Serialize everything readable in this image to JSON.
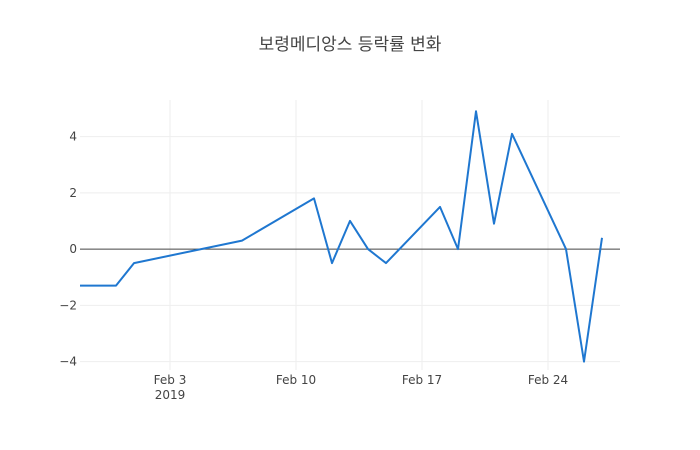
{
  "chart_data": {
    "type": "line",
    "title": "보령메디앙스 등락률 변화",
    "xlabel": "",
    "ylabel": "",
    "x_axis": {
      "type": "date",
      "range": [
        "2019-01-29",
        "2019-02-28"
      ],
      "ticks": [
        {
          "date": "2019-02-03",
          "label": "Feb 3",
          "sublabel": "2019"
        },
        {
          "date": "2019-02-10",
          "label": "Feb 10",
          "sublabel": ""
        },
        {
          "date": "2019-02-17",
          "label": "Feb 17",
          "sublabel": ""
        },
        {
          "date": "2019-02-24",
          "label": "Feb 24",
          "sublabel": ""
        }
      ]
    },
    "y_axis": {
      "range": [
        -4.3,
        5.3
      ],
      "ticks": [
        {
          "value": 4,
          "label": "4"
        },
        {
          "value": 2,
          "label": "2"
        },
        {
          "value": 0,
          "label": "0"
        },
        {
          "value": -2,
          "label": "−2"
        },
        {
          "value": -4,
          "label": "−4"
        }
      ],
      "zeroline": true
    },
    "grid": true,
    "color": "#1f77d0",
    "series": [
      {
        "name": "",
        "points": [
          {
            "x": "2019-01-29",
            "y": -1.3
          },
          {
            "x": "2019-01-31",
            "y": -1.3
          },
          {
            "x": "2019-02-01",
            "y": -0.5
          },
          {
            "x": "2019-02-07",
            "y": 0.3
          },
          {
            "x": "2019-02-11",
            "y": 1.8
          },
          {
            "x": "2019-02-12",
            "y": -0.5
          },
          {
            "x": "2019-02-13",
            "y": 1.0
          },
          {
            "x": "2019-02-14",
            "y": 0.0
          },
          {
            "x": "2019-02-15",
            "y": -0.5
          },
          {
            "x": "2019-02-18",
            "y": 1.5
          },
          {
            "x": "2019-02-19",
            "y": 0.0
          },
          {
            "x": "2019-02-20",
            "y": 4.9
          },
          {
            "x": "2019-02-21",
            "y": 0.9
          },
          {
            "x": "2019-02-22",
            "y": 4.1
          },
          {
            "x": "2019-02-25",
            "y": 0.0
          },
          {
            "x": "2019-02-26",
            "y": -4.0
          },
          {
            "x": "2019-02-27",
            "y": 0.4
          }
        ]
      }
    ]
  }
}
